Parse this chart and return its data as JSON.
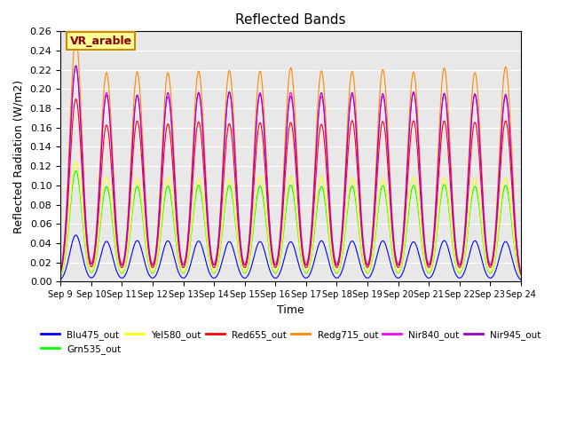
{
  "title": "Reflected Bands",
  "xlabel": "Time",
  "ylabel": "Reflected Radiation (W/m2)",
  "annotation": "VR_arable",
  "ylim": [
    0,
    0.26
  ],
  "series_names": [
    "Blu475_out",
    "Grn535_out",
    "Yel580_out",
    "Red655_out",
    "Redg715_out",
    "Nir840_out",
    "Nir945_out"
  ],
  "series_colors": [
    "#0000FF",
    "#00FF00",
    "#FFFF00",
    "#FF0000",
    "#FF8800",
    "#FF00FF",
    "#9900CC"
  ],
  "series_peaks": [
    0.042,
    0.1,
    0.108,
    0.165,
    0.22,
    0.195,
    0.195
  ],
  "first_peak_multiplier": 1.15,
  "n_days": 15,
  "xtick_labels": [
    "Sep 9",
    "Sep 10",
    "Sep 11",
    "Sep 12",
    "Sep 13",
    "Sep 14",
    "Sep 15",
    "Sep 16",
    "Sep 17",
    "Sep 18",
    "Sep 19",
    "Sep 20",
    "Sep 21",
    "Sep 22",
    "Sep 23",
    "Sep 24"
  ],
  "bg_color": "#E8E8E8",
  "legend_colors": [
    "#0000FF",
    "#00FF00",
    "#FFFF00",
    "#FF0000",
    "#FF8800",
    "#FF00FF",
    "#9900CC"
  ]
}
